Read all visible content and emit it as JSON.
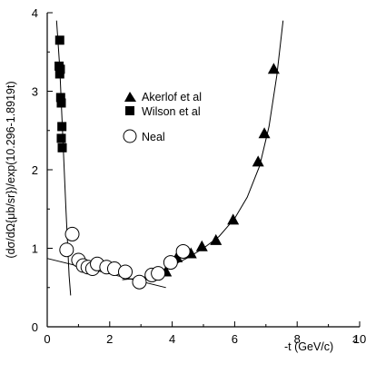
{
  "chart_data": {
    "type": "scatter",
    "xlabel": "-t (GeV/c)",
    "xlabel_superscript": "2",
    "ylabel": "(dσ/dΩ{μb/sr})/exp(10.296-1.8919t)",
    "xlim": [
      0,
      10
    ],
    "ylim": [
      0,
      4
    ],
    "x_ticks": [
      "0",
      "2",
      "4",
      "6",
      "8",
      "10"
    ],
    "y_ticks": [
      "0",
      "1",
      "2",
      "3",
      "4"
    ],
    "grid": false,
    "legend_position": "upper-center",
    "series": [
      {
        "name": "Akerlof et al",
        "marker": "triangle",
        "points": [
          {
            "x": 3.8,
            "y": 0.7
          },
          {
            "x": 4.15,
            "y": 0.88
          },
          {
            "x": 4.6,
            "y": 0.93
          },
          {
            "x": 4.95,
            "y": 1.02
          },
          {
            "x": 5.4,
            "y": 1.1
          },
          {
            "x": 5.95,
            "y": 1.36
          },
          {
            "x": 6.75,
            "y": 2.1
          },
          {
            "x": 6.95,
            "y": 2.46
          },
          {
            "x": 7.25,
            "y": 3.28
          }
        ]
      },
      {
        "name": "Wilson et al",
        "marker": "square",
        "points": [
          {
            "x": 0.4,
            "y": 3.65
          },
          {
            "x": 0.38,
            "y": 3.32
          },
          {
            "x": 0.42,
            "y": 3.28
          },
          {
            "x": 0.4,
            "y": 3.22
          },
          {
            "x": 0.43,
            "y": 2.92
          },
          {
            "x": 0.45,
            "y": 2.85
          },
          {
            "x": 0.47,
            "y": 2.55
          },
          {
            "x": 0.45,
            "y": 2.4
          },
          {
            "x": 0.48,
            "y": 2.28
          }
        ]
      },
      {
        "name": "Neal",
        "marker": "circle",
        "points": [
          {
            "x": 0.62,
            "y": 0.98
          },
          {
            "x": 0.8,
            "y": 1.18
          },
          {
            "x": 1.0,
            "y": 0.85
          },
          {
            "x": 1.15,
            "y": 0.78
          },
          {
            "x": 1.3,
            "y": 0.76
          },
          {
            "x": 1.45,
            "y": 0.74
          },
          {
            "x": 1.6,
            "y": 0.8
          },
          {
            "x": 1.9,
            "y": 0.76
          },
          {
            "x": 2.15,
            "y": 0.74
          },
          {
            "x": 2.5,
            "y": 0.7
          },
          {
            "x": 2.95,
            "y": 0.57
          },
          {
            "x": 3.35,
            "y": 0.66
          },
          {
            "x": 3.55,
            "y": 0.68
          },
          {
            "x": 3.95,
            "y": 0.82
          },
          {
            "x": 4.35,
            "y": 0.96
          }
        ]
      }
    ],
    "fit_lines": [
      {
        "type": "steep",
        "points": [
          {
            "x": 0.3,
            "y": 3.9
          },
          {
            "x": 0.4,
            "y": 3.3
          },
          {
            "x": 0.5,
            "y": 2.4
          },
          {
            "x": 0.6,
            "y": 1.5
          },
          {
            "x": 0.7,
            "y": 0.65
          },
          {
            "x": 0.75,
            "y": 0.4
          }
        ]
      },
      {
        "type": "straight",
        "points": [
          {
            "x": 0.0,
            "y": 0.87
          },
          {
            "x": 3.8,
            "y": 0.5
          }
        ]
      },
      {
        "type": "rising",
        "points": [
          {
            "x": 2.4,
            "y": 0.6
          },
          {
            "x": 3.0,
            "y": 0.62
          },
          {
            "x": 3.5,
            "y": 0.68
          },
          {
            "x": 4.0,
            "y": 0.78
          },
          {
            "x": 4.5,
            "y": 0.88
          },
          {
            "x": 5.0,
            "y": 1.0
          },
          {
            "x": 5.5,
            "y": 1.15
          },
          {
            "x": 6.0,
            "y": 1.38
          },
          {
            "x": 6.4,
            "y": 1.65
          },
          {
            "x": 6.8,
            "y": 2.05
          },
          {
            "x": 7.1,
            "y": 2.55
          },
          {
            "x": 7.35,
            "y": 3.2
          },
          {
            "x": 7.55,
            "y": 3.9
          }
        ]
      }
    ]
  }
}
